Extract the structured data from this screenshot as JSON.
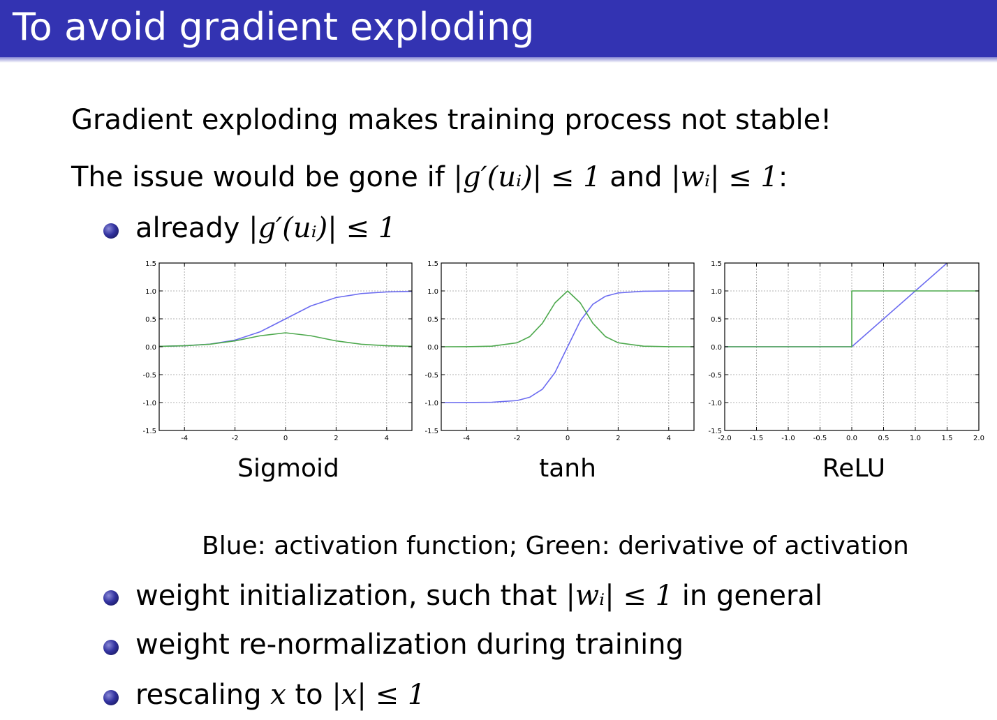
{
  "header": {
    "title": "To avoid gradient exploding"
  },
  "body": {
    "line1": "Gradient exploding makes training process not stable!",
    "line2_prefix": "The issue would be gone if ",
    "line2_math1": "|g′(uᵢ)| ≤ 1",
    "line2_and": " and ",
    "line2_math2": "|wᵢ| ≤ 1",
    "line2_suffix": ":",
    "bullet1_prefix": "already ",
    "bullet1_math": "|g′(uᵢ)| ≤ 1",
    "legend_text": "Blue: activation function; Green: derivative of activation",
    "bullet2_prefix": "weight initialization, such that ",
    "bullet2_math": "|wᵢ| ≤ 1",
    "bullet2_suffix": " in general",
    "bullet3": "weight re-normalization during training",
    "bullet4_prefix": "rescaling ",
    "bullet4_math1": "x",
    "bullet4_mid": " to ",
    "bullet4_math2": "|x| ≤ 1"
  },
  "colors": {
    "activation": "#6b6bf0",
    "derivative": "#4ca84c",
    "titlebar": "#3333b2"
  },
  "chart_data": [
    {
      "type": "line",
      "title": "Sigmoid",
      "xlim": [
        -5,
        5
      ],
      "ylim": [
        -1.5,
        1.5
      ],
      "xticks": [
        "-4",
        "-2",
        "0",
        "2",
        "4"
      ],
      "xtick_values": [
        -4,
        -2,
        0,
        2,
        4
      ],
      "yticks": [
        "1.5",
        "1.0",
        "0.5",
        "0.0",
        "-0.5",
        "-1.0",
        "-1.5"
      ],
      "ytick_values": [
        1.5,
        1.0,
        0.5,
        0.0,
        -0.5,
        -1.0,
        -1.5
      ],
      "grid": true,
      "series": [
        {
          "role": "activation",
          "color": "#6b6bf0",
          "x": [
            -5,
            -4,
            -3,
            -2,
            -1,
            0,
            1,
            2,
            3,
            4,
            5
          ],
          "y": [
            0.007,
            0.018,
            0.047,
            0.119,
            0.269,
            0.5,
            0.731,
            0.881,
            0.953,
            0.982,
            0.993
          ]
        },
        {
          "role": "derivative",
          "color": "#4ca84c",
          "x": [
            -5,
            -4,
            -3,
            -2,
            -1,
            0,
            1,
            2,
            3,
            4,
            5
          ],
          "y": [
            0.007,
            0.018,
            0.045,
            0.105,
            0.197,
            0.25,
            0.197,
            0.105,
            0.045,
            0.018,
            0.007
          ]
        }
      ]
    },
    {
      "type": "line",
      "title": "tanh",
      "xlim": [
        -5,
        5
      ],
      "ylim": [
        -1.5,
        1.5
      ],
      "xticks": [
        "-4",
        "-2",
        "0",
        "2",
        "4"
      ],
      "xtick_values": [
        -4,
        -2,
        0,
        2,
        4
      ],
      "yticks": [
        "1.5",
        "1.0",
        "0.5",
        "0.0",
        "-0.5",
        "-1.0",
        "-1.5"
      ],
      "ytick_values": [
        1.5,
        1.0,
        0.5,
        0.0,
        -0.5,
        -1.0,
        -1.5
      ],
      "grid": true,
      "series": [
        {
          "role": "activation",
          "color": "#6b6bf0",
          "x": [
            -5,
            -4,
            -3,
            -2,
            -1.5,
            -1,
            -0.5,
            0,
            0.5,
            1,
            1.5,
            2,
            3,
            4,
            5
          ],
          "y": [
            -1.0,
            -0.999,
            -0.995,
            -0.964,
            -0.905,
            -0.762,
            -0.462,
            0,
            0.462,
            0.762,
            0.905,
            0.964,
            0.995,
            0.999,
            1.0
          ]
        },
        {
          "role": "derivative",
          "color": "#4ca84c",
          "x": [
            -5,
            -4,
            -3,
            -2,
            -1.5,
            -1,
            -0.5,
            0,
            0.5,
            1,
            1.5,
            2,
            3,
            4,
            5
          ],
          "y": [
            0.0,
            0.001,
            0.01,
            0.071,
            0.181,
            0.42,
            0.786,
            1.0,
            0.786,
            0.42,
            0.181,
            0.071,
            0.01,
            0.001,
            0.0
          ]
        }
      ]
    },
    {
      "type": "line",
      "title": "ReLU",
      "xlim": [
        -2,
        2
      ],
      "ylim": [
        -1.5,
        1.5
      ],
      "xticks": [
        "-2.0",
        "-1.5",
        "-1.0",
        "-0.5",
        "0.0",
        "0.5",
        "1.0",
        "1.5",
        "2.0"
      ],
      "xtick_values": [
        -2.0,
        -1.5,
        -1.0,
        -0.5,
        0.0,
        0.5,
        1.0,
        1.5,
        2.0
      ],
      "yticks": [
        "1.5",
        "1.0",
        "0.5",
        "0.0",
        "-0.5",
        "-1.0",
        "-1.5"
      ],
      "ytick_values": [
        1.5,
        1.0,
        0.5,
        0.0,
        -0.5,
        -1.0,
        -1.5
      ],
      "grid": true,
      "series": [
        {
          "role": "activation",
          "color": "#6b6bf0",
          "x": [
            -2,
            0,
            1.5
          ],
          "y": [
            0,
            0,
            1.5
          ]
        },
        {
          "role": "derivative",
          "color": "#4ca84c",
          "x": [
            -2,
            0,
            0,
            2
          ],
          "y": [
            0,
            0,
            1,
            1
          ]
        }
      ]
    }
  ]
}
